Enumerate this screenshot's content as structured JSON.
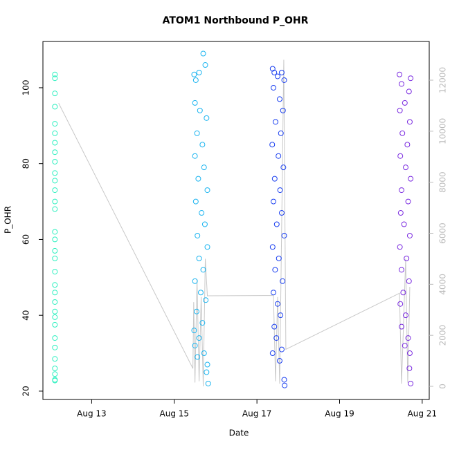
{
  "chart_data": {
    "type": "scatter",
    "title": "ATOM1 Northbound P_OHR",
    "x_label": "Date",
    "y_label": "P_OHR",
    "xlim": [
      11.82,
      21.17
    ],
    "xticks": [
      {
        "value": 13,
        "label": "Aug 13"
      },
      {
        "value": 15,
        "label": "Aug 15"
      },
      {
        "value": 17,
        "label": "Aug 17"
      },
      {
        "value": 19,
        "label": "Aug 19"
      },
      {
        "value": 21,
        "label": "Aug 21"
      }
    ],
    "ylim": [
      17.8,
      112.2
    ],
    "yticks": [
      20,
      40,
      60,
      80,
      100
    ],
    "y2lim": [
      -515,
      13517
    ],
    "y2ticks": [
      0,
      2000,
      4000,
      6000,
      8000,
      10000,
      12000
    ],
    "y2_color": "#bbbbbb",
    "series": [
      {
        "color": "#2ef0c0",
        "x": [
          12.11,
          12.11,
          12.11,
          12.11,
          12.11,
          12.11,
          12.11,
          12.11,
          12.11,
          12.11,
          12.11,
          12.11,
          12.11,
          12.11,
          12.11,
          12.11,
          12.11,
          12.11,
          12.11,
          12.11,
          12.11,
          12.11,
          12.11,
          12.11,
          12.11,
          12.11,
          12.11,
          12.11,
          12.11,
          12.11,
          12.11,
          12.11
        ],
        "values": [
          103.5,
          102.5,
          98.5,
          95,
          90.5,
          88,
          85.5,
          83,
          80.5,
          77.5,
          75.5,
          73,
          70,
          68,
          62,
          60,
          57,
          55,
          51.5,
          48,
          46,
          43.5,
          41,
          39.5,
          37.5,
          34,
          31.5,
          28.5,
          26,
          24.5,
          23,
          22.8
        ]
      },
      {
        "color": "#1ab4f0",
        "x": [
          15.48,
          15.52,
          15.6,
          15.7,
          15.75,
          15.5,
          15.62,
          15.78,
          15.55,
          15.68,
          15.5,
          15.72,
          15.58,
          15.8,
          15.52,
          15.66,
          15.74,
          15.56,
          15.8,
          15.6,
          15.7,
          15.5,
          15.64,
          15.76,
          15.54,
          15.68,
          15.48,
          15.6,
          15.5,
          15.72,
          15.56,
          15.8,
          15.78,
          15.82
        ],
        "values": [
          103.5,
          102,
          104,
          109,
          106,
          96,
          94,
          92,
          88,
          85,
          82,
          79,
          76,
          73,
          70,
          67,
          64,
          61,
          58,
          55,
          52,
          49,
          46,
          44,
          41,
          38,
          36,
          34,
          32,
          30,
          29,
          27,
          25,
          22
        ]
      },
      {
        "color": "#1a3ff0",
        "x": [
          17.38,
          17.42,
          17.5,
          17.6,
          17.66,
          17.4,
          17.55,
          17.63,
          17.45,
          17.58,
          17.37,
          17.52,
          17.64,
          17.43,
          17.56,
          17.4,
          17.6,
          17.48,
          17.66,
          17.38,
          17.53,
          17.44,
          17.62,
          17.4,
          17.5,
          17.57,
          17.42,
          17.47,
          17.6,
          17.38,
          17.55,
          17.66,
          17.67
        ],
        "values": [
          105,
          104,
          103,
          104,
          102,
          100,
          97,
          94,
          91,
          88,
          85,
          82,
          79,
          76,
          73,
          70,
          67,
          64,
          61,
          58,
          55,
          52,
          49,
          46,
          43,
          40,
          37,
          34,
          31,
          30,
          28,
          23,
          21.5
        ]
      },
      {
        "color": "#7a2ae0",
        "x": [
          20.45,
          20.72,
          20.5,
          20.68,
          20.58,
          20.46,
          20.7,
          20.52,
          20.64,
          20.47,
          20.6,
          20.72,
          20.5,
          20.66,
          20.48,
          20.56,
          20.7,
          20.46,
          20.62,
          20.5,
          20.68,
          20.54,
          20.47,
          20.6,
          20.5,
          20.66,
          20.58,
          20.7,
          20.69,
          20.72
        ],
        "values": [
          103.5,
          102.5,
          101,
          99,
          96,
          94,
          91,
          88,
          85,
          82,
          79,
          76,
          73,
          70,
          67,
          64,
          61,
          58,
          55,
          52,
          49,
          46,
          43,
          40,
          37,
          34,
          32,
          30,
          26,
          22
        ]
      },
      {
        "type": "line",
        "axis": "y2",
        "color": "#c8c8c8",
        "x": [
          12.2,
          15.45,
          15.47,
          15.5,
          15.55,
          15.6,
          15.65,
          15.7,
          15.75,
          15.8,
          17.4,
          17.45,
          17.5,
          17.55,
          17.65,
          17.7,
          20.45,
          20.5,
          20.6,
          20.65,
          20.7
        ],
        "values": [
          11100,
          700,
          3300,
          150,
          4200,
          200,
          3500,
          0,
          5000,
          3550,
          3560,
          200,
          3500,
          100,
          12800,
          1450,
          3650,
          100,
          5000,
          150,
          3900
        ]
      }
    ]
  }
}
